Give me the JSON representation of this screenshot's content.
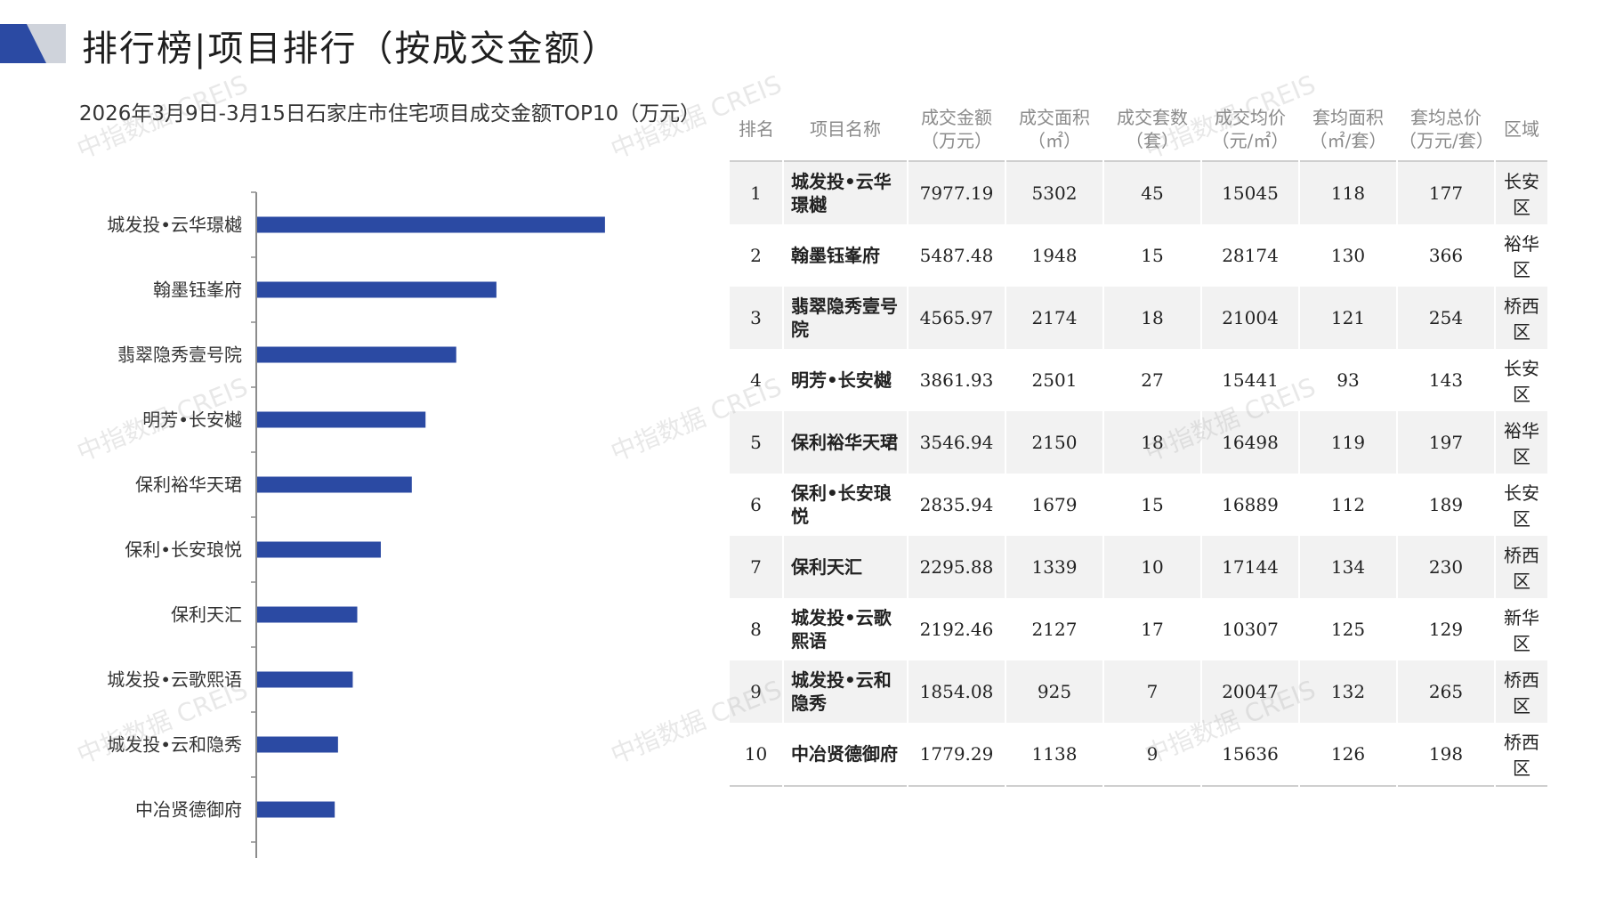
{
  "header": {
    "title": "排行榜|项目排行（按成交金额）",
    "colors": {
      "logo_blue": "#2b4aa3",
      "logo_grey": "#cfd3db"
    }
  },
  "chart_data": {
    "type": "bar",
    "orientation": "horizontal",
    "title": "2026年3月9日-3月15日石家庄市住宅项目成交金额TOP10（万元）",
    "categories": [
      "城发投•云华璟樾",
      "翰墨钰峯府",
      "翡翠隐秀壹号院",
      "明芳•长安樾",
      "保利裕华天珺",
      "保利•长安琅悦",
      "保利天汇",
      "城发投•云歌熙语",
      "城发投•云和隐秀",
      "中冶贤德御府"
    ],
    "values": [
      7977.19,
      5487.48,
      4565.97,
      3861.93,
      3546.94,
      2835.94,
      2295.88,
      2192.46,
      1854.08,
      1779.29
    ],
    "xlim": [
      0,
      10000
    ],
    "bar_color": "#2b4aa3",
    "grid": false,
    "legend": "none"
  },
  "table": {
    "headers": [
      {
        "line1": "排名",
        "line2": ""
      },
      {
        "line1": "项目名称",
        "line2": ""
      },
      {
        "line1": "成交金额",
        "line2": "（万元）"
      },
      {
        "line1": "成交面积",
        "line2": "（㎡）"
      },
      {
        "line1": "成交套数",
        "line2": "（套）"
      },
      {
        "line1": "成交均价",
        "line2": "（元/㎡）"
      },
      {
        "line1": "套均面积",
        "line2": "（㎡/套）"
      },
      {
        "line1": "套均总价",
        "line2": "（万元/套）"
      },
      {
        "line1": "区域",
        "line2": ""
      }
    ],
    "rows": [
      [
        "1",
        "城发投•云华璟樾",
        "7977.19",
        "5302",
        "45",
        "15045",
        "118",
        "177",
        "长安区"
      ],
      [
        "2",
        "翰墨钰峯府",
        "5487.48",
        "1948",
        "15",
        "28174",
        "130",
        "366",
        "裕华区"
      ],
      [
        "3",
        "翡翠隐秀壹号院",
        "4565.97",
        "2174",
        "18",
        "21004",
        "121",
        "254",
        "桥西区"
      ],
      [
        "4",
        "明芳•长安樾",
        "3861.93",
        "2501",
        "27",
        "15441",
        "93",
        "143",
        "长安区"
      ],
      [
        "5",
        "保利裕华天珺",
        "3546.94",
        "2150",
        "18",
        "16498",
        "119",
        "197",
        "裕华区"
      ],
      [
        "6",
        "保利•长安琅悦",
        "2835.94",
        "1679",
        "15",
        "16889",
        "112",
        "189",
        "长安区"
      ],
      [
        "7",
        "保利天汇",
        "2295.88",
        "1339",
        "10",
        "17144",
        "134",
        "230",
        "桥西区"
      ],
      [
        "8",
        "城发投•云歌熙语",
        "2192.46",
        "2127",
        "17",
        "10307",
        "125",
        "129",
        "新华区"
      ],
      [
        "9",
        "城发投•云和隐秀",
        "1854.08",
        "925",
        "7",
        "20047",
        "132",
        "265",
        "桥西区"
      ],
      [
        "10",
        "中冶贤德御府",
        "1779.29",
        "1138",
        "9",
        "15636",
        "126",
        "198",
        "桥西区"
      ]
    ]
  },
  "watermark": {
    "text": "中指数据 CREIS"
  }
}
